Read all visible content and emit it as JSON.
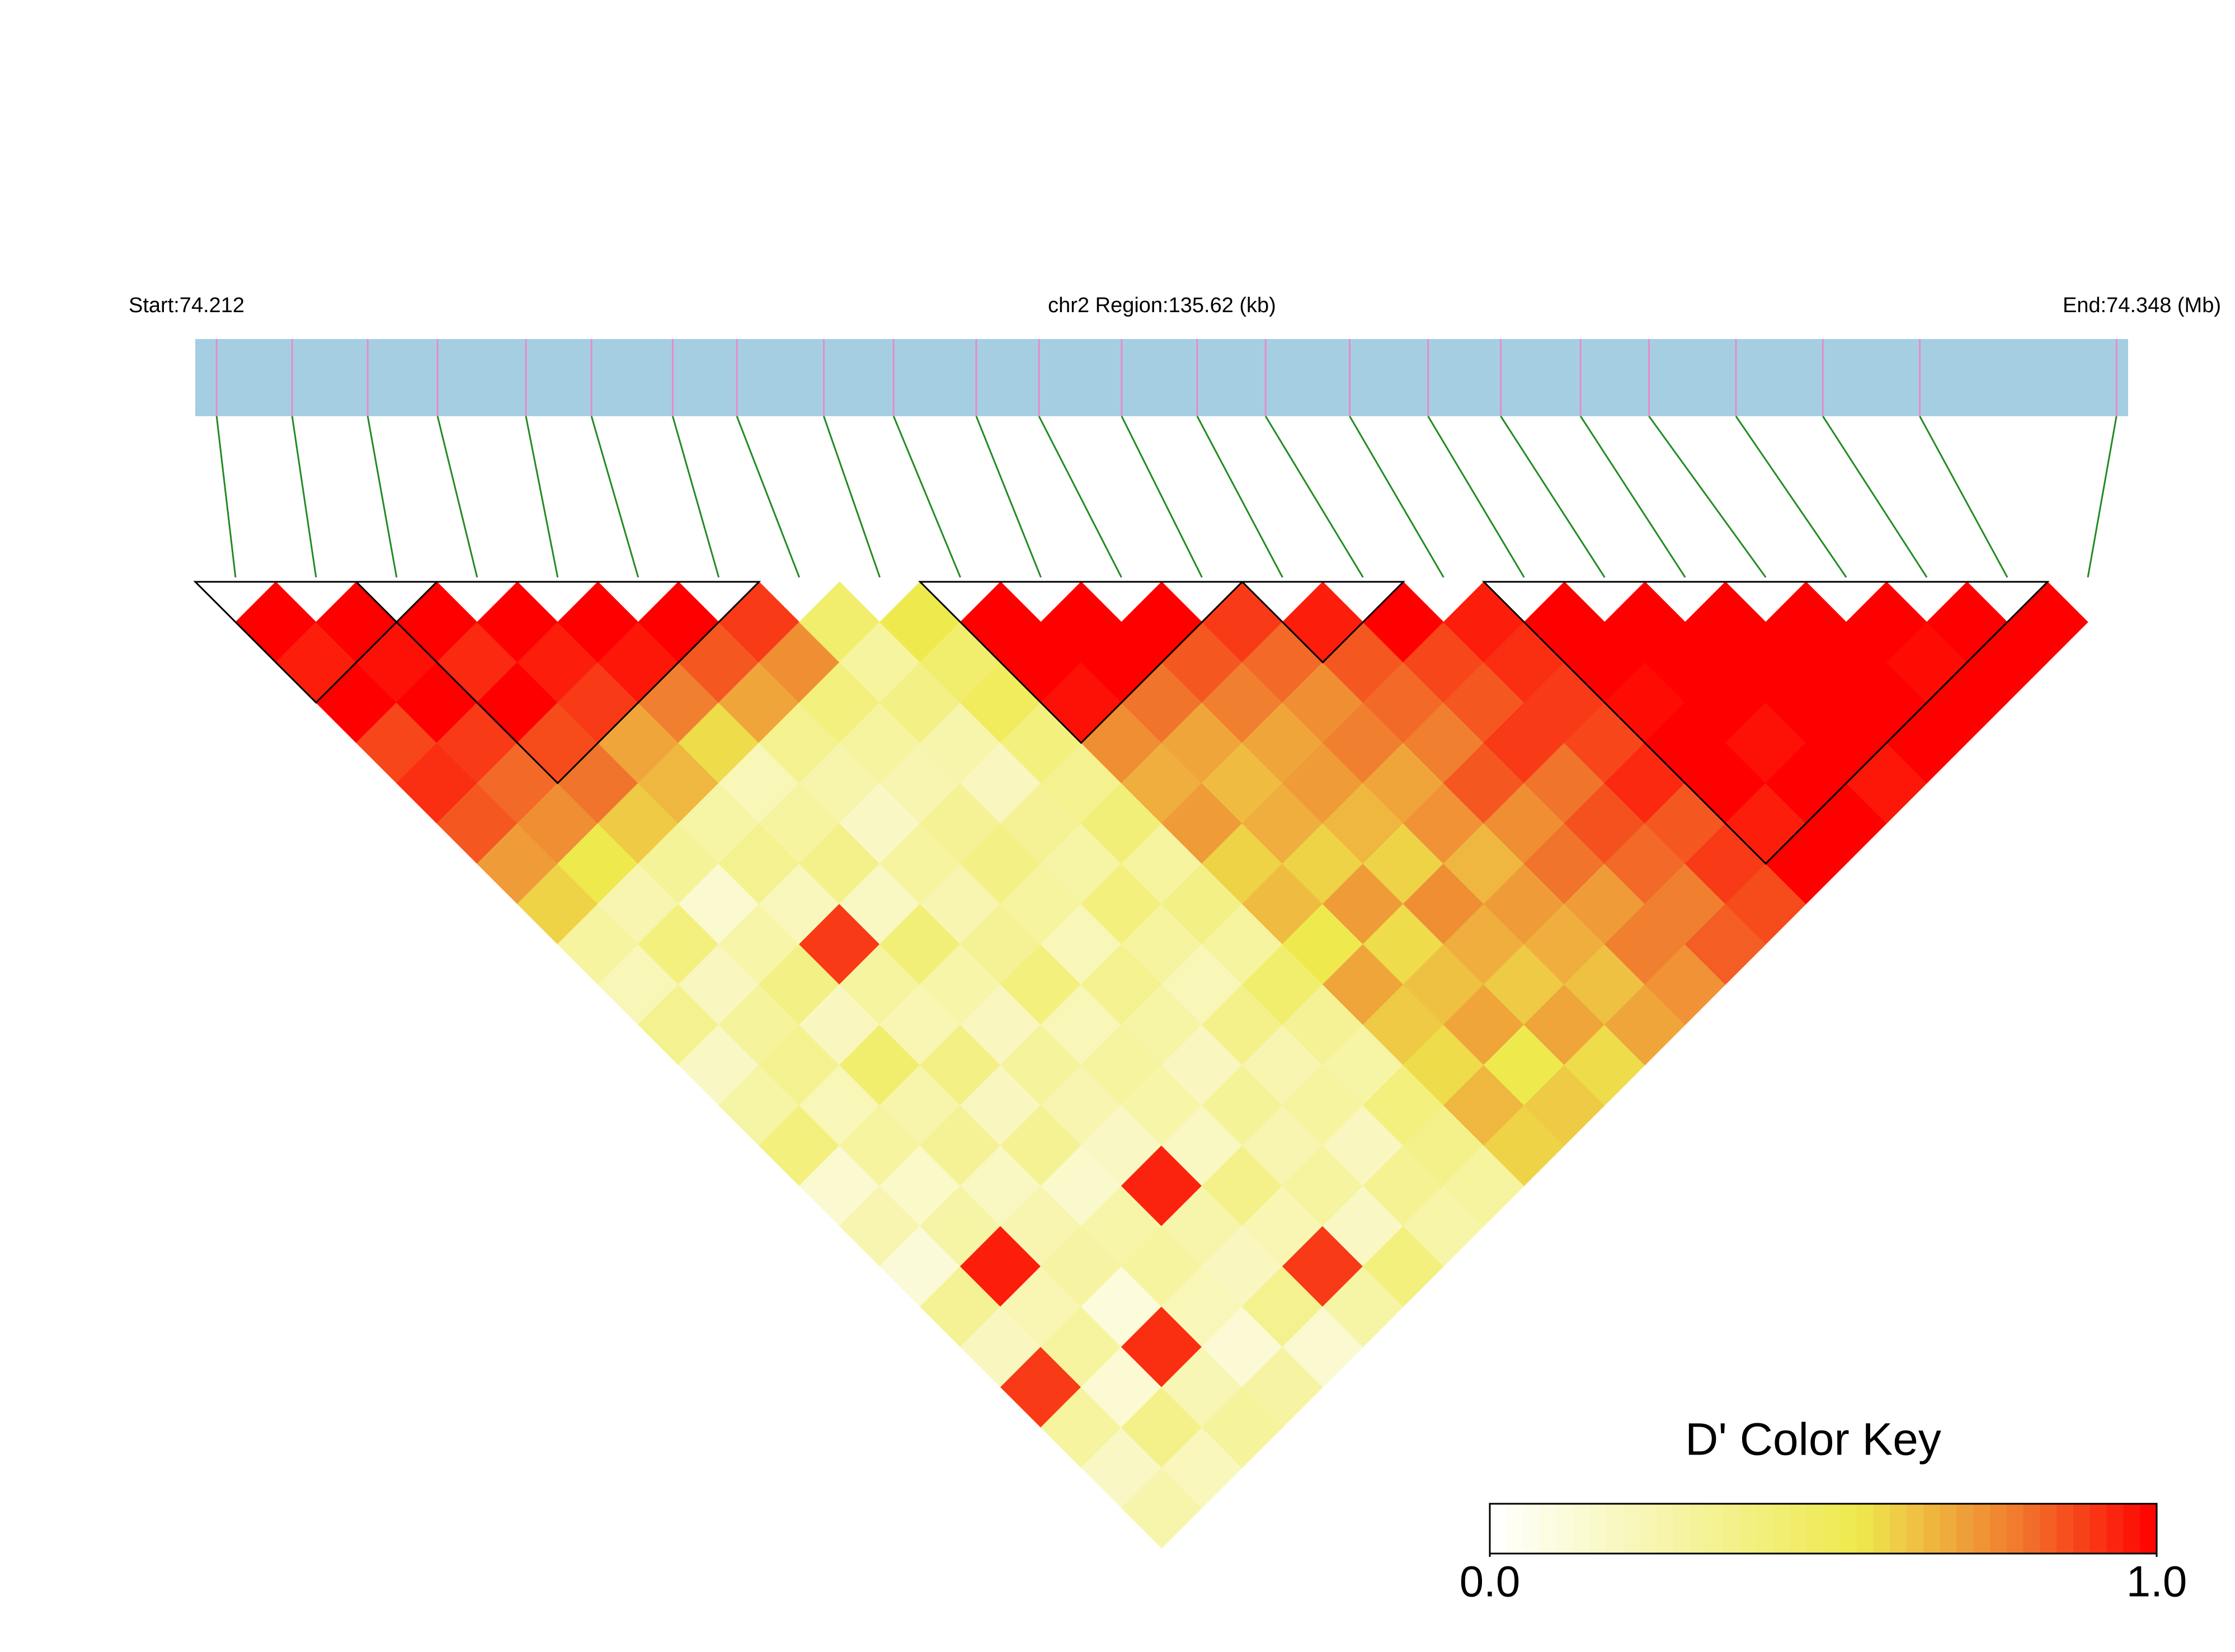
{
  "chart_data": {
    "type": "ld-heatmap",
    "start_label": "Start:74.212",
    "region_label": "chr2 Region:135.62 (kb)",
    "end_label": "End:74.348 (Mb)",
    "key_title": "D' Color Key",
    "xlim": [
      74.212,
      74.34762
    ],
    "x": [
      74.2135,
      74.2188,
      74.2241,
      74.229,
      74.2352,
      74.2398,
      74.2455,
      74.25,
      74.2561,
      74.261,
      74.2668,
      74.2712,
      74.277,
      74.2823,
      74.2871,
      74.293,
      74.2985,
      74.3036,
      74.3092,
      74.314,
      74.3201,
      74.3262,
      74.333,
      74.3468
    ],
    "values": [
      [
        1,
        0.95,
        1,
        0.88,
        0.92,
        0.85,
        0.72,
        0.6,
        0.3,
        0.22,
        0.35,
        0.18,
        0.28,
        0.4,
        0.15,
        0.25,
        0.12,
        0.33,
        0.2,
        0.9,
        0.3,
        0.18,
        0.26
      ],
      [
        1,
        0.97,
        1,
        0.9,
        0.82,
        0.75,
        0.55,
        0.25,
        0.4,
        0.2,
        0.31,
        0.35,
        0.22,
        0.3,
        0.17,
        0.28,
        0.95,
        0.24,
        0.3,
        0.14,
        0.36,
        0.21
      ],
      [
        1,
        0.93,
        1,
        0.87,
        0.8,
        0.62,
        0.32,
        0.15,
        0.27,
        0.38,
        0.2,
        0.45,
        0.26,
        0.33,
        0.19,
        0.25,
        0.29,
        0.11,
        0.92,
        0.23,
        0.31
      ],
      [
        1,
        0.95,
        0.9,
        0.7,
        0.66,
        0.28,
        0.35,
        0.21,
        0.9,
        0.3,
        0.24,
        0.38,
        0.2,
        0.34,
        0.16,
        0.27,
        0.3,
        0.22,
        0.13,
        0.29
      ],
      [
        1,
        0.96,
        0.78,
        0.58,
        0.22,
        0.3,
        0.36,
        0.19,
        0.42,
        0.27,
        0.2,
        0.31,
        0.25,
        0.18,
        0.94,
        0.26,
        0.2,
        0.35,
        0.15
      ],
      [
        1,
        0.85,
        0.7,
        0.35,
        0.26,
        0.18,
        0.3,
        0.25,
        0.33,
        0.4,
        0.22,
        0.3,
        0.27,
        0.19,
        0.36,
        0.24,
        0.9,
        0.28
      ],
      [
        0.9,
        0.75,
        0.4,
        0.3,
        0.25,
        0.33,
        0.38,
        0.3,
        0.22,
        0.35,
        0.28,
        0.2,
        0.32,
        0.25,
        0.3,
        0.18,
        0.4
      ],
      [
        0.45,
        0.3,
        0.38,
        0.26,
        0.2,
        0.33,
        0.28,
        0.4,
        0.3,
        0.22,
        0.36,
        0.25,
        0.3,
        0.2,
        0.34,
        0.27
      ],
      [
        0.55,
        0.45,
        0.5,
        0.4,
        0.35,
        0.42,
        0.3,
        0.38,
        0.3,
        0.45,
        0.33,
        0.28,
        0.4,
        0.36,
        0.3
      ],
      [
        1,
        1,
        0.97,
        0.75,
        0.68,
        0.72,
        0.6,
        0.65,
        0.55,
        0.7,
        0.62,
        0.58,
        0.66,
        0.6
      ],
      [
        1,
        1,
        0.8,
        0.7,
        0.65,
        0.68,
        0.6,
        0.72,
        0.58,
        0.64,
        0.7,
        0.55,
        0.62
      ],
      [
        1,
        0.85,
        0.78,
        0.7,
        0.72,
        0.66,
        0.6,
        0.75,
        0.68,
        0.62,
        0.7,
        0.58
      ],
      [
        0.9,
        0.82,
        0.75,
        0.78,
        0.7,
        0.74,
        0.66,
        0.72,
        0.68,
        0.64,
        0.7
      ],
      [
        0.95,
        0.85,
        0.82,
        0.78,
        0.85,
        0.75,
        0.8,
        0.72,
        0.78,
        0.74
      ],
      [
        1,
        0.88,
        0.85,
        0.9,
        0.8,
        0.86,
        0.82,
        0.78,
        0.84
      ],
      [
        0.95,
        0.92,
        0.9,
        0.88,
        0.93,
        0.85,
        0.9,
        0.87
      ],
      [
        1,
        1,
        0.98,
        1,
        1,
        0.95,
        1
      ],
      [
        1,
        1,
        1,
        0.97,
        1,
        1
      ],
      [
        1,
        1,
        1,
        1,
        0.96
      ],
      [
        1,
        1,
        1,
        1
      ],
      [
        1,
        0.98,
        1
      ],
      [
        1,
        1
      ],
      [
        1
      ]
    ],
    "blocks": [
      [
        0,
        2
      ],
      [
        2,
        6
      ],
      [
        9,
        12
      ],
      [
        13,
        14
      ],
      [
        16,
        22
      ]
    ],
    "colorscale": [
      [
        0,
        "#ffffff"
      ],
      [
        0.55,
        "#eeea4e"
      ],
      [
        0.78,
        "#f08030"
      ],
      [
        1,
        "#ff0000"
      ]
    ],
    "key_ticks": [
      {
        "value": 0,
        "label": "0.0"
      },
      {
        "value": 1,
        "label": "1.0"
      }
    ],
    "bar_color": "#a6cee3",
    "tick_color": "#e88bc8",
    "link_color": "#228b22"
  }
}
